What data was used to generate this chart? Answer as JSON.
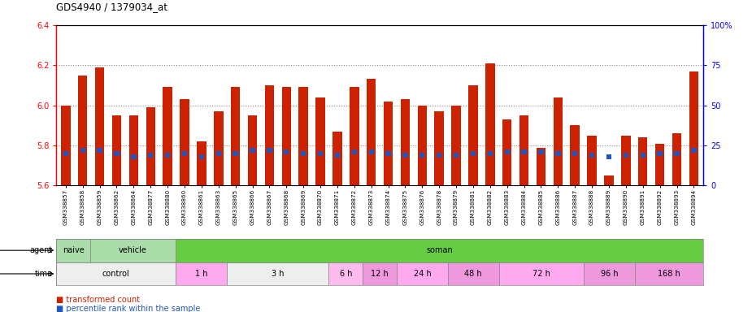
{
  "title": "GDS4940 / 1379034_at",
  "samples": [
    "GSM338857",
    "GSM338858",
    "GSM338859",
    "GSM338862",
    "GSM338864",
    "GSM338877",
    "GSM338880",
    "GSM338860",
    "GSM338861",
    "GSM338863",
    "GSM338865",
    "GSM338866",
    "GSM338867",
    "GSM338868",
    "GSM338869",
    "GSM338870",
    "GSM338871",
    "GSM338872",
    "GSM338873",
    "GSM338874",
    "GSM338875",
    "GSM338876",
    "GSM338878",
    "GSM338879",
    "GSM338881",
    "GSM338882",
    "GSM338883",
    "GSM338884",
    "GSM338885",
    "GSM338886",
    "GSM338887",
    "GSM338888",
    "GSM338889",
    "GSM338890",
    "GSM338891",
    "GSM338892",
    "GSM338893",
    "GSM338894"
  ],
  "transformed_count": [
    6.0,
    6.15,
    6.19,
    5.95,
    5.95,
    5.99,
    6.09,
    6.03,
    5.82,
    5.97,
    6.09,
    5.95,
    6.1,
    6.09,
    6.09,
    6.04,
    5.87,
    6.09,
    6.13,
    6.02,
    6.03,
    6.0,
    5.97,
    6.0,
    6.1,
    6.21,
    5.93,
    5.95,
    5.79,
    6.04,
    5.9,
    5.85,
    5.65,
    5.85,
    5.84,
    5.81,
    5.86,
    6.17
  ],
  "percentile_rank": [
    20,
    22,
    22,
    20,
    18,
    19,
    19,
    20,
    18,
    20,
    20,
    22,
    22,
    21,
    20,
    20,
    19,
    21,
    21,
    20,
    19,
    19,
    19,
    19,
    20,
    20,
    21,
    21,
    21,
    20,
    20,
    19,
    18,
    19,
    19,
    20,
    20,
    22
  ],
  "ymin": 5.6,
  "ymax": 6.4,
  "yticks": [
    5.6,
    5.8,
    6.0,
    6.2,
    6.4
  ],
  "ytick_right": [
    0,
    25,
    50,
    75,
    100
  ],
  "bar_color": "#cc2200",
  "percentile_color": "#2255bb",
  "bg_color": "#ffffff",
  "agent_blocks": [
    {
      "label": "naive",
      "start": 0,
      "end": 2,
      "color": "#aaddaa"
    },
    {
      "label": "vehicle",
      "start": 2,
      "end": 7,
      "color": "#aaddaa"
    },
    {
      "label": "soman",
      "start": 7,
      "end": 38,
      "color": "#66cc44"
    }
  ],
  "time_blocks": [
    {
      "label": "control",
      "start": 0,
      "end": 7,
      "color": "#eeeeee"
    },
    {
      "label": "1 h",
      "start": 7,
      "end": 10,
      "color": "#ffaaee"
    },
    {
      "label": "3 h",
      "start": 10,
      "end": 16,
      "color": "#eeeeee"
    },
    {
      "label": "6 h",
      "start": 16,
      "end": 18,
      "color": "#ffbbee"
    },
    {
      "label": "12 h",
      "start": 18,
      "end": 20,
      "color": "#ee99dd"
    },
    {
      "label": "24 h",
      "start": 20,
      "end": 23,
      "color": "#ffaaee"
    },
    {
      "label": "48 h",
      "start": 23,
      "end": 26,
      "color": "#ee99dd"
    },
    {
      "label": "72 h",
      "start": 26,
      "end": 31,
      "color": "#ffaaee"
    },
    {
      "label": "96 h",
      "start": 31,
      "end": 34,
      "color": "#ee99dd"
    },
    {
      "label": "168 h",
      "start": 34,
      "end": 38,
      "color": "#ee99dd"
    }
  ],
  "gridline_color": "#888888",
  "n_samples": 38
}
